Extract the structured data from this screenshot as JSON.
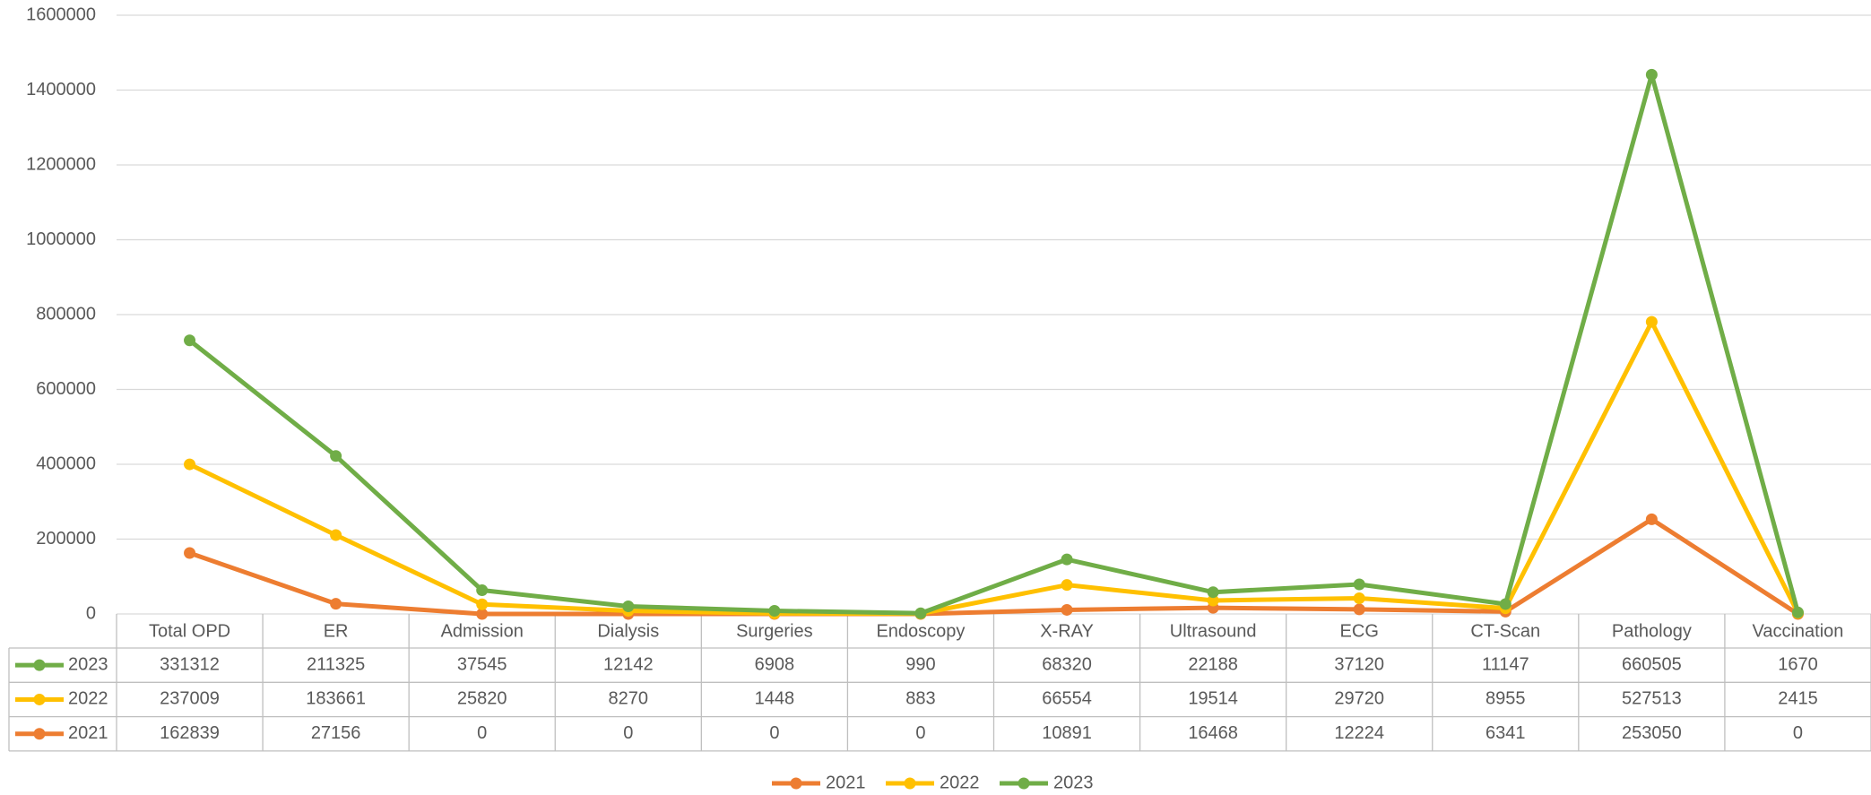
{
  "chart_data": {
    "type": "line",
    "stacked": true,
    "grid": true,
    "legend": "bottom",
    "categories": [
      "Total OPD",
      "ER",
      "Admission",
      "Dialysis",
      "Surgeries",
      "Endoscopy",
      "X-RAY",
      "Ultrasound",
      "ECG",
      "CT-Scan",
      "Pathology",
      "Vaccination"
    ],
    "series": [
      {
        "name": "2021",
        "color": "#ed7d31",
        "values": [
          162839,
          27156,
          0,
          0,
          0,
          0,
          10891,
          16468,
          12224,
          6341,
          253050,
          0
        ]
      },
      {
        "name": "2022",
        "color": "#ffc000",
        "values": [
          237009,
          183661,
          25820,
          8270,
          1448,
          883,
          66554,
          19514,
          29720,
          8955,
          527513,
          2415
        ]
      },
      {
        "name": "2023",
        "color": "#70ad47",
        "values": [
          331312,
          211325,
          37545,
          12142,
          6908,
          990,
          68320,
          22188,
          37120,
          11147,
          660505,
          1670
        ]
      }
    ],
    "ylim": [
      0,
      1600000
    ],
    "yticks": [
      0,
      200000,
      400000,
      600000,
      800000,
      1000000,
      1200000,
      1400000,
      1600000
    ]
  }
}
